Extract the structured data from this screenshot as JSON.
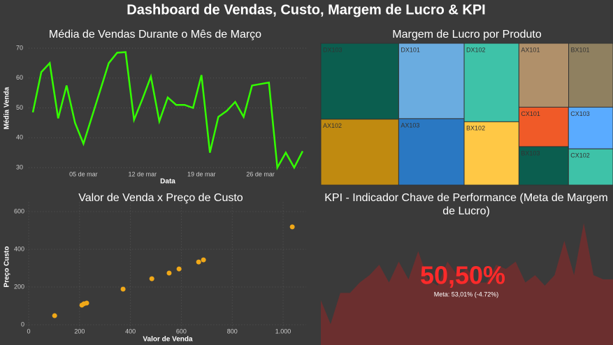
{
  "title": "Dashboard de Vendas, Custo, Margem de Lucro & KPI",
  "chart_data": [
    {
      "type": "line",
      "title": "Média de Vendas Durante o Mês de Março",
      "x_label": "Data",
      "y_label": "Média Venda",
      "categories": [
        null,
        null,
        null,
        null,
        null,
        null,
        "05 de mar",
        null,
        null,
        null,
        null,
        null,
        null,
        "12 de mar",
        null,
        null,
        null,
        null,
        null,
        null,
        "19 de mar",
        null,
        null,
        null,
        null,
        null,
        null,
        "26 de mar",
        null,
        null,
        null,
        null,
        null
      ],
      "series": [
        {
          "name": "Média Venda",
          "color": "#33ff00",
          "values": [
            48.5,
            62,
            65,
            46.5,
            57.5,
            45,
            38,
            47,
            56,
            65,
            68.5,
            68.7,
            46,
            53,
            60.5,
            45.5,
            53.5,
            51,
            51,
            50,
            61,
            35,
            47,
            49,
            52,
            47,
            57.5,
            58,
            58.5,
            30,
            35,
            30,
            35.5
          ]
        }
      ],
      "ylim": [
        28,
        72
      ],
      "yticks": [
        30,
        40,
        50,
        60,
        70
      ],
      "grid": true
    },
    {
      "type": "treemap",
      "title": "Margem de Lucro por Produto",
      "categories": [
        "DX103",
        "AX102",
        "DX101",
        "AX103",
        "DX102",
        "BX102",
        "AX101",
        "BX101",
        "CX101",
        "BX103",
        "CX103",
        "CX102"
      ],
      "values": [
        121,
        105,
        101,
        89,
        88,
        71,
        65,
        58,
        40,
        39,
        38,
        33
      ],
      "colors": [
        "#0b5e4f",
        "#c08a10",
        "#6aace0",
        "#2a78c2",
        "#3ec2a8",
        "#ffc845",
        "#b0906a",
        "#8f8060",
        "#f05a28",
        "#0b5e4f",
        "#5aabff",
        "#3ec2a8"
      ]
    },
    {
      "type": "scatter",
      "title": "Valor de Venda x Preço de Custo",
      "x_label": "Valor de Venda",
      "y_label": "Preço Custo",
      "x": [
        102,
        209,
        217,
        228,
        371,
        484,
        552,
        591,
        668,
        687,
        1036
      ],
      "values": [
        48,
        104,
        111,
        115,
        189,
        244,
        274,
        296,
        333,
        344,
        519
      ],
      "color": "#f0a818",
      "xlim": [
        -10,
        1090
      ],
      "xticks": [
        0,
        200,
        400,
        600,
        800,
        {
          "value": 1000,
          "label": "1.000"
        }
      ],
      "ylim": [
        -20,
        650
      ],
      "yticks": [
        0,
        200,
        400,
        600
      ],
      "grid": true
    },
    {
      "type": "kpi",
      "title": "KPI - Indicador Chave de Performance (Meta de Margem de Lucro)",
      "value": 50.5,
      "value_label": "50,50%",
      "target_label": "Meta: 53,01% (-4.72%)",
      "color": "#ff2a2a",
      "trend": [
        23,
        0,
        30,
        30,
        40,
        47,
        57,
        40,
        60,
        43,
        70,
        43,
        37,
        60,
        47,
        53,
        40,
        40,
        57,
        53,
        60,
        40,
        47,
        37,
        47,
        80,
        47,
        97,
        47,
        43,
        43
      ],
      "trend_color": "#6b2f2f",
      "ylim": [
        -20,
        100
      ]
    }
  ]
}
